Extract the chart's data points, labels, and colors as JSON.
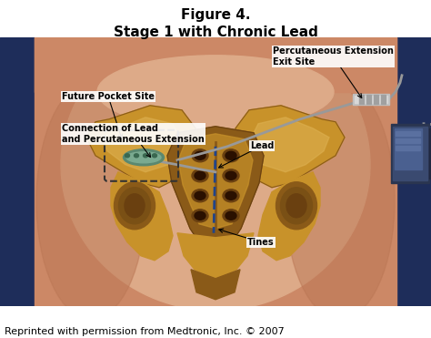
{
  "title_line1": "Figure 4.",
  "title_line2": "Stage 1 with Chronic Lead",
  "caption": "Reprinted with permission from Medtronic, Inc. © 2007",
  "title_fontsize": 11,
  "title_fontweight": "bold",
  "caption_fontsize": 8,
  "fig_width": 4.74,
  "fig_height": 3.71,
  "dpi": 100,
  "bg_color": "#ffffff",
  "dark_blue": "#1e2d5a",
  "skin_mid": "#cc8866",
  "skin_light": "#ddaa88",
  "skin_dark": "#bb7755",
  "bone_main": "#c8922a",
  "bone_light": "#ddb050",
  "bone_dark": "#8a5a18",
  "bone_shadow": "#6a4010",
  "wire_gray": "#999999",
  "wire_blue": "#224488",
  "device_dark": "#2a3550",
  "device_mid": "#3a4a70",
  "label_fontsize": 7,
  "label_fontweight": "bold"
}
